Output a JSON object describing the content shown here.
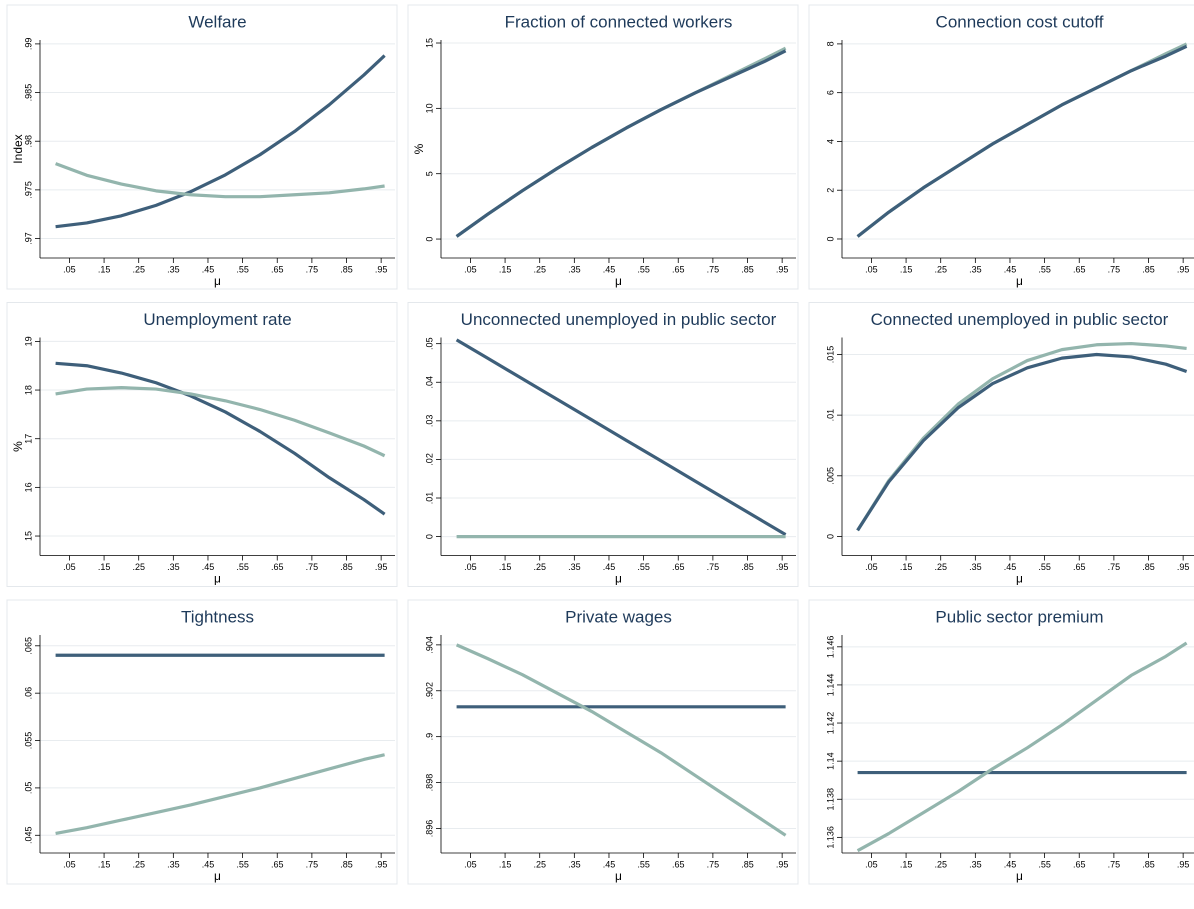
{
  "chart_data": [
    {
      "type": "line",
      "title": "Welfare",
      "xlabel": "μ",
      "ylabel": "Index",
      "grid": true,
      "x": [
        0.01,
        0.1,
        0.2,
        0.3,
        0.4,
        0.5,
        0.6,
        0.7,
        0.8,
        0.9,
        0.96
      ],
      "series": [
        {
          "color": "#3e5f7a",
          "values": [
            0.97122,
            0.9716,
            0.97234,
            0.97341,
            0.97481,
            0.97654,
            0.97861,
            0.981,
            0.98374,
            0.9868,
            0.9888
          ]
        },
        {
          "color": "#93b5ad",
          "values": [
            0.9777,
            0.9765,
            0.9756,
            0.9749,
            0.9745,
            0.9743,
            0.9743,
            0.9745,
            0.9747,
            0.9751,
            0.9754
          ]
        }
      ],
      "xlim": [
        -0.035,
        0.99
      ],
      "xticks": [
        {
          "value": 0.05,
          "label": ".05"
        },
        {
          "value": 0.15,
          "label": ".15"
        },
        {
          "value": 0.25,
          "label": ".25"
        },
        {
          "value": 0.35,
          "label": ".35"
        },
        {
          "value": 0.45,
          "label": ".45"
        },
        {
          "value": 0.55,
          "label": ".55"
        },
        {
          "value": 0.65,
          "label": ".65"
        },
        {
          "value": 0.75,
          "label": ".75"
        },
        {
          "value": 0.85,
          "label": ".85"
        },
        {
          "value": 0.95,
          "label": ".95"
        }
      ],
      "ylim": [
        0.968,
        0.9904
      ],
      "yticks": [
        {
          "value": 0.97,
          "label": ".97"
        },
        {
          "value": 0.975,
          "label": ".975"
        },
        {
          "value": 0.98,
          "label": ".98"
        },
        {
          "value": 0.985,
          "label": ".985"
        },
        {
          "value": 0.99,
          "label": ".99"
        }
      ]
    },
    {
      "type": "line",
      "title": "Fraction of connected workers",
      "xlabel": "μ",
      "ylabel": "%",
      "grid": true,
      "x": [
        0.01,
        0.1,
        0.2,
        0.3,
        0.4,
        0.5,
        0.6,
        0.7,
        0.8,
        0.9,
        0.96
      ],
      "series": [
        {
          "color": "#93b5ad",
          "values": [
            0.2,
            1.9,
            3.7,
            5.4,
            7.0,
            8.5,
            9.9,
            11.2,
            12.5,
            13.8,
            14.6
          ]
        },
        {
          "color": "#3e5f7a",
          "values": [
            0.2,
            1.9,
            3.7,
            5.4,
            7.0,
            8.5,
            9.9,
            11.2,
            12.4,
            13.6,
            14.4
          ]
        }
      ],
      "xlim": [
        -0.035,
        0.99
      ],
      "xticks": [
        {
          "value": 0.05,
          "label": ".05"
        },
        {
          "value": 0.15,
          "label": ".15"
        },
        {
          "value": 0.25,
          "label": ".25"
        },
        {
          "value": 0.35,
          "label": ".35"
        },
        {
          "value": 0.45,
          "label": ".45"
        },
        {
          "value": 0.55,
          "label": ".55"
        },
        {
          "value": 0.65,
          "label": ".65"
        },
        {
          "value": 0.75,
          "label": ".75"
        },
        {
          "value": 0.85,
          "label": ".85"
        },
        {
          "value": 0.95,
          "label": ".95"
        }
      ],
      "ylim": [
        -1.45,
        15.23
      ],
      "yticks": [
        0,
        5,
        10,
        15
      ]
    },
    {
      "type": "line",
      "title": "Connection cost cutoff",
      "xlabel": "μ",
      "grid": true,
      "x": [
        0.01,
        0.1,
        0.2,
        0.3,
        0.4,
        0.5,
        0.6,
        0.7,
        0.8,
        0.9,
        0.96
      ],
      "series": [
        {
          "color": "#93b5ad",
          "values": [
            0.1,
            1.1,
            2.1,
            3.0,
            3.9,
            4.7,
            5.5,
            6.2,
            6.9,
            7.6,
            8.0
          ]
        },
        {
          "color": "#3e5f7a",
          "values": [
            0.1,
            1.1,
            2.1,
            3.0,
            3.9,
            4.7,
            5.5,
            6.2,
            6.9,
            7.5,
            7.9
          ]
        }
      ],
      "xlim": [
        -0.035,
        0.99
      ],
      "xticks": [
        {
          "value": 0.05,
          "label": ".05"
        },
        {
          "value": 0.15,
          "label": ".15"
        },
        {
          "value": 0.25,
          "label": ".25"
        },
        {
          "value": 0.35,
          "label": ".35"
        },
        {
          "value": 0.45,
          "label": ".45"
        },
        {
          "value": 0.55,
          "label": ".55"
        },
        {
          "value": 0.65,
          "label": ".65"
        },
        {
          "value": 0.75,
          "label": ".75"
        },
        {
          "value": 0.85,
          "label": ".85"
        },
        {
          "value": 0.95,
          "label": ".95"
        }
      ],
      "ylim": [
        -0.78,
        8.16
      ],
      "yticks": [
        0,
        2,
        4,
        6,
        8
      ]
    },
    {
      "type": "line",
      "title": "Unemployment rate",
      "xlabel": "μ",
      "ylabel": "%",
      "grid": true,
      "x": [
        0.01,
        0.1,
        0.2,
        0.3,
        0.4,
        0.5,
        0.6,
        0.7,
        0.8,
        0.9,
        0.96
      ],
      "series": [
        {
          "color": "#3e5f7a",
          "values": [
            18.55,
            18.5,
            18.35,
            18.15,
            17.88,
            17.55,
            17.15,
            16.7,
            16.2,
            15.75,
            15.45
          ]
        },
        {
          "color": "#93b5ad",
          "values": [
            17.92,
            18.02,
            18.05,
            18.02,
            17.92,
            17.78,
            17.6,
            17.38,
            17.12,
            16.85,
            16.65
          ]
        }
      ],
      "xlim": [
        -0.035,
        0.99
      ],
      "xticks": [
        {
          "value": 0.05,
          "label": ".05"
        },
        {
          "value": 0.15,
          "label": ".15"
        },
        {
          "value": 0.25,
          "label": ".25"
        },
        {
          "value": 0.35,
          "label": ".35"
        },
        {
          "value": 0.45,
          "label": ".45"
        },
        {
          "value": 0.55,
          "label": ".55"
        },
        {
          "value": 0.65,
          "label": ".65"
        },
        {
          "value": 0.75,
          "label": ".75"
        },
        {
          "value": 0.85,
          "label": ".85"
        },
        {
          "value": 0.95,
          "label": ".95"
        }
      ],
      "ylim": [
        14.6,
        19.08
      ],
      "yticks": [
        15,
        16,
        17,
        18,
        19
      ]
    },
    {
      "type": "line",
      "title": "Unconnected unemployed in public sector",
      "xlabel": "μ",
      "grid": true,
      "x": [
        0.01,
        0.1,
        0.2,
        0.3,
        0.4,
        0.5,
        0.6,
        0.7,
        0.8,
        0.9,
        0.96
      ],
      "series": [
        {
          "color": "#3e5f7a",
          "values": [
            0.051,
            0.04622,
            0.0409,
            0.03558,
            0.03027,
            0.02495,
            0.01964,
            0.01432,
            0.009,
            0.00369,
            0.0005
          ]
        },
        {
          "color": "#93b5ad",
          "values": [
            0,
            0,
            0,
            0,
            0,
            0,
            0,
            0,
            0,
            0,
            0
          ]
        }
      ],
      "xlim": [
        -0.035,
        0.99
      ],
      "xticks": [
        {
          "value": 0.05,
          "label": ".05"
        },
        {
          "value": 0.15,
          "label": ".15"
        },
        {
          "value": 0.25,
          "label": ".25"
        },
        {
          "value": 0.35,
          "label": ".35"
        },
        {
          "value": 0.45,
          "label": ".45"
        },
        {
          "value": 0.55,
          "label": ".55"
        },
        {
          "value": 0.65,
          "label": ".65"
        },
        {
          "value": 0.75,
          "label": ".75"
        },
        {
          "value": 0.85,
          "label": ".85"
        },
        {
          "value": 0.95,
          "label": ".95"
        }
      ],
      "ylim": [
        -0.0049,
        0.0516
      ],
      "yticks": [
        0,
        {
          "value": 0.01,
          "label": ".01"
        },
        {
          "value": 0.02,
          "label": ".02"
        },
        {
          "value": 0.03,
          "label": ".03"
        },
        {
          "value": 0.04,
          "label": ".04"
        },
        {
          "value": 0.05,
          "label": ".05"
        }
      ]
    },
    {
      "type": "line",
      "title": "Connected unemployed in public sector",
      "xlabel": "μ",
      "grid": true,
      "x": [
        0.01,
        0.1,
        0.2,
        0.3,
        0.4,
        0.5,
        0.6,
        0.7,
        0.8,
        0.9,
        0.96
      ],
      "series": [
        {
          "color": "#93b5ad",
          "values": [
            0.0005,
            0.0046,
            0.0081,
            0.0109,
            0.013,
            0.0145,
            0.0154,
            0.0158,
            0.0159,
            0.0157,
            0.0155
          ]
        },
        {
          "color": "#3e5f7a",
          "values": [
            0.0005,
            0.0045,
            0.0079,
            0.0106,
            0.0126,
            0.0139,
            0.0147,
            0.015,
            0.0148,
            0.0142,
            0.0136
          ]
        }
      ],
      "xlim": [
        -0.035,
        0.99
      ],
      "xticks": [
        {
          "value": 0.05,
          "label": ".05"
        },
        {
          "value": 0.15,
          "label": ".15"
        },
        {
          "value": 0.25,
          "label": ".25"
        },
        {
          "value": 0.35,
          "label": ".35"
        },
        {
          "value": 0.45,
          "label": ".45"
        },
        {
          "value": 0.55,
          "label": ".55"
        },
        {
          "value": 0.65,
          "label": ".65"
        },
        {
          "value": 0.75,
          "label": ".75"
        },
        {
          "value": 0.85,
          "label": ".85"
        },
        {
          "value": 0.95,
          "label": ".95"
        }
      ],
      "ylim": [
        -0.00157,
        0.0164
      ],
      "yticks": [
        0,
        {
          "value": 0.005,
          "label": ".005"
        },
        {
          "value": 0.01,
          "label": ".01"
        },
        {
          "value": 0.015,
          "label": ".015"
        }
      ]
    },
    {
      "type": "line",
      "title": "Tightness",
      "xlabel": "μ",
      "grid": true,
      "x": [
        0.01,
        0.1,
        0.2,
        0.3,
        0.4,
        0.5,
        0.6,
        0.7,
        0.8,
        0.9,
        0.96
      ],
      "series": [
        {
          "color": "#3e5f7a",
          "values": [
            0.064,
            0.064,
            0.064,
            0.064,
            0.064,
            0.064,
            0.064,
            0.064,
            0.064,
            0.064,
            0.064
          ]
        },
        {
          "color": "#93b5ad",
          "values": [
            0.0452,
            0.0458,
            0.0466,
            0.0474,
            0.0482,
            0.0491,
            0.05,
            0.051,
            0.052,
            0.053,
            0.0535
          ]
        }
      ],
      "xlim": [
        -0.035,
        0.99
      ],
      "xticks": [
        {
          "value": 0.05,
          "label": ".05"
        },
        {
          "value": 0.15,
          "label": ".15"
        },
        {
          "value": 0.25,
          "label": ".25"
        },
        {
          "value": 0.35,
          "label": ".35"
        },
        {
          "value": 0.45,
          "label": ".45"
        },
        {
          "value": 0.55,
          "label": ".55"
        },
        {
          "value": 0.65,
          "label": ".65"
        },
        {
          "value": 0.75,
          "label": ".75"
        },
        {
          "value": 0.85,
          "label": ".85"
        },
        {
          "value": 0.95,
          "label": ".95"
        }
      ],
      "ylim": [
        0.04313,
        0.06614
      ],
      "yticks": [
        {
          "value": 0.045,
          "label": ".045"
        },
        {
          "value": 0.05,
          "label": ".05"
        },
        {
          "value": 0.055,
          "label": ".055"
        },
        {
          "value": 0.06,
          "label": ".06"
        },
        {
          "value": 0.065,
          "label": ".065"
        }
      ]
    },
    {
      "type": "line",
      "title": "Private wages",
      "xlabel": "μ",
      "grid": true,
      "x": [
        0.01,
        0.1,
        0.2,
        0.3,
        0.4,
        0.5,
        0.6,
        0.7,
        0.8,
        0.9,
        0.96
      ],
      "series": [
        {
          "color": "#3e5f7a",
          "values": [
            0.9013,
            0.9013,
            0.9013,
            0.9013,
            0.9013,
            0.9013,
            0.9013,
            0.9013,
            0.9013,
            0.9013,
            0.9013
          ]
        },
        {
          "color": "#93b5ad",
          "values": [
            0.904,
            0.9034,
            0.9027,
            0.9019,
            0.9011,
            0.9002,
            0.8993,
            0.8983,
            0.8973,
            0.8963,
            0.8957
          ]
        }
      ],
      "xlim": [
        -0.035,
        0.99
      ],
      "xticks": [
        {
          "value": 0.05,
          "label": ".05"
        },
        {
          "value": 0.15,
          "label": ".15"
        },
        {
          "value": 0.25,
          "label": ".25"
        },
        {
          "value": 0.35,
          "label": ".35"
        },
        {
          "value": 0.45,
          "label": ".45"
        },
        {
          "value": 0.55,
          "label": ".55"
        },
        {
          "value": 0.65,
          "label": ".65"
        },
        {
          "value": 0.75,
          "label": ".75"
        },
        {
          "value": 0.85,
          "label": ".85"
        },
        {
          "value": 0.95,
          "label": ".95"
        }
      ],
      "ylim": [
        0.89493,
        0.90443
      ],
      "yticks": [
        {
          "value": 0.896,
          "label": ".896"
        },
        {
          "value": 0.898,
          "label": ".898"
        },
        {
          "value": 0.9,
          "label": ".9"
        },
        {
          "value": 0.902,
          "label": ".902"
        },
        {
          "value": 0.904,
          "label": ".904"
        }
      ]
    },
    {
      "type": "line",
      "title": "Public sector premium",
      "xlabel": "μ",
      "grid": true,
      "x": [
        0.01,
        0.1,
        0.2,
        0.3,
        0.4,
        0.5,
        0.6,
        0.7,
        0.8,
        0.9,
        0.96
      ],
      "series": [
        {
          "color": "#3e5f7a",
          "values": [
            1.1394,
            1.1394,
            1.1394,
            1.1394,
            1.1394,
            1.1394,
            1.1394,
            1.1394,
            1.1394,
            1.1394,
            1.1394
          ]
        },
        {
          "color": "#93b5ad",
          "values": [
            1.1353,
            1.1362,
            1.1373,
            1.1384,
            1.1396,
            1.1407,
            1.1419,
            1.1432,
            1.1445,
            1.1455,
            1.1462
          ]
        }
      ],
      "xlim": [
        -0.035,
        0.99
      ],
      "xticks": [
        {
          "value": 0.05,
          "label": ".05"
        },
        {
          "value": 0.15,
          "label": ".15"
        },
        {
          "value": 0.25,
          "label": ".25"
        },
        {
          "value": 0.35,
          "label": ".35"
        },
        {
          "value": 0.45,
          "label": ".45"
        },
        {
          "value": 0.55,
          "label": ".55"
        },
        {
          "value": 0.65,
          "label": ".65"
        },
        {
          "value": 0.75,
          "label": ".75"
        },
        {
          "value": 0.85,
          "label": ".85"
        },
        {
          "value": 0.95,
          "label": ".95"
        }
      ],
      "ylim": [
        1.13518,
        1.14662
      ],
      "yticks": [
        1.136,
        1.138,
        1.14,
        1.142,
        1.144,
        1.146
      ]
    }
  ]
}
